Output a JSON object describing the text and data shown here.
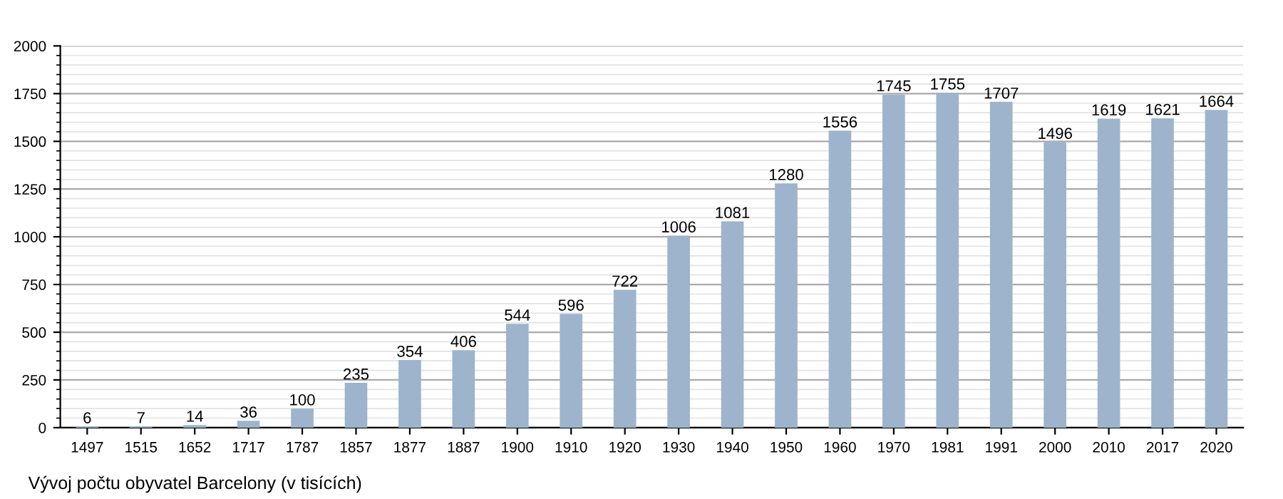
{
  "chart_data": {
    "type": "bar",
    "categories": [
      "1497",
      "1515",
      "1652",
      "1717",
      "1787",
      "1857",
      "1877",
      "1887",
      "1900",
      "1910",
      "1920",
      "1930",
      "1940",
      "1950",
      "1960",
      "1970",
      "1981",
      "1991",
      "2000",
      "2010",
      "2017",
      "2020"
    ],
    "values": [
      6,
      7,
      14,
      36,
      100,
      235,
      354,
      406,
      544,
      596,
      722,
      1006,
      1081,
      1280,
      1556,
      1745,
      1755,
      1707,
      1496,
      1619,
      1621,
      1664
    ],
    "color": "#9db4cc",
    "ylim": [
      0,
      2000
    ],
    "yticks": [
      0,
      250,
      500,
      750,
      1000,
      1250,
      1500,
      1750,
      2000
    ],
    "grid": "y",
    "data_labels": true,
    "annotations": [
      "Vývoj počtu obyvatel Barcelony (v tisících)"
    ]
  }
}
